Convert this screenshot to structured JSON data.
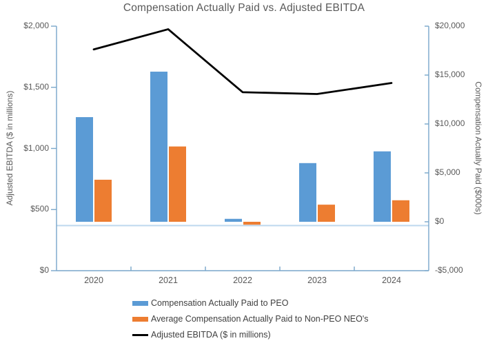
{
  "chart_data": {
    "type": "bar",
    "subtype": "combo-bar-line-dual-axis",
    "title": "Compensation Actually Paid vs. Adjusted EBITDA",
    "categories": [
      "2020",
      "2021",
      "2022",
      "2023",
      "2024"
    ],
    "series": [
      {
        "name": "Compensation Actually Paid to PEO",
        "kind": "bar",
        "axis": "right",
        "color": "#5B9BD5",
        "values": [
          10700,
          15350,
          300,
          6000,
          7200
        ]
      },
      {
        "name": "Average Compensation Actually Paid to Non-PEO NEO's",
        "kind": "bar",
        "axis": "right",
        "color": "#ED7D31",
        "values": [
          4300,
          7700,
          -300,
          1750,
          2200
        ]
      },
      {
        "name": "Adjusted EBITDA ($ in millions)",
        "kind": "line",
        "axis": "left",
        "color": "#000000",
        "values": [
          1810,
          1975,
          1460,
          1445,
          1535
        ]
      }
    ],
    "left_axis": {
      "label": "Adjusted EBITDA ($ in millions)",
      "min": 0,
      "max": 2000,
      "step": 500,
      "tick_labels": [
        "$0",
        "$500",
        "$1,000",
        "$1,500",
        "$2,000"
      ]
    },
    "right_axis": {
      "label": "Compensation Actually Paid ($000s)",
      "min": -5000,
      "max": 20000,
      "step": 5000,
      "tick_labels": [
        "-$5,000",
        "$0",
        "$5,000",
        "$10,000",
        "$15,000",
        "$20,000"
      ]
    },
    "legend_position": "bottom",
    "grid": false,
    "colors": {
      "axis_line": "#78A6CA",
      "secondary_zero_line": "#BDD7EE",
      "text": "#595959",
      "bar_peo": "#5B9BD5",
      "bar_non_peo": "#ED7D31",
      "ebitda_line": "#000000"
    }
  }
}
